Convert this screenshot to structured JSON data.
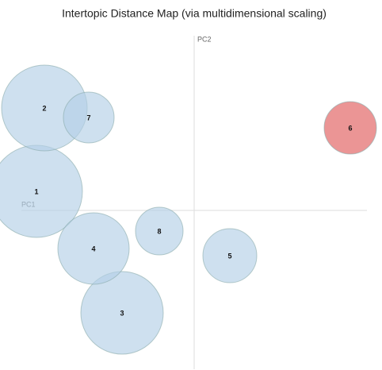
{
  "chart_data": {
    "type": "bubble",
    "title": "Intertopic Distance Map (via multidimensional scaling)",
    "xlabel": "PC1",
    "ylabel": "PC2",
    "categories": [
      "1",
      "2",
      "3",
      "4",
      "5",
      "6",
      "7",
      "8"
    ],
    "x": [
      -0.199,
      -0.189,
      -0.091,
      -0.127,
      0.045,
      0.197,
      -0.133,
      -0.044
    ],
    "values": [
      0.024,
      0.129,
      -0.129,
      -0.048,
      -0.057,
      0.104,
      0.117,
      -0.026
    ],
    "sizes": [
      0.058,
      0.054,
      0.052,
      0.045,
      0.034,
      0.033,
      0.032,
      0.03
    ],
    "colors": [
      "#b4cfe6",
      "#b4cfe6",
      "#b4cfe6",
      "#b4cfe6",
      "#b4cfe6",
      "#e05c5c",
      "#b4cfe6",
      "#b4cfe6"
    ],
    "xlim": [
      -0.245,
      0.218
    ],
    "ylim": [
      -0.2,
      0.22
    ]
  }
}
